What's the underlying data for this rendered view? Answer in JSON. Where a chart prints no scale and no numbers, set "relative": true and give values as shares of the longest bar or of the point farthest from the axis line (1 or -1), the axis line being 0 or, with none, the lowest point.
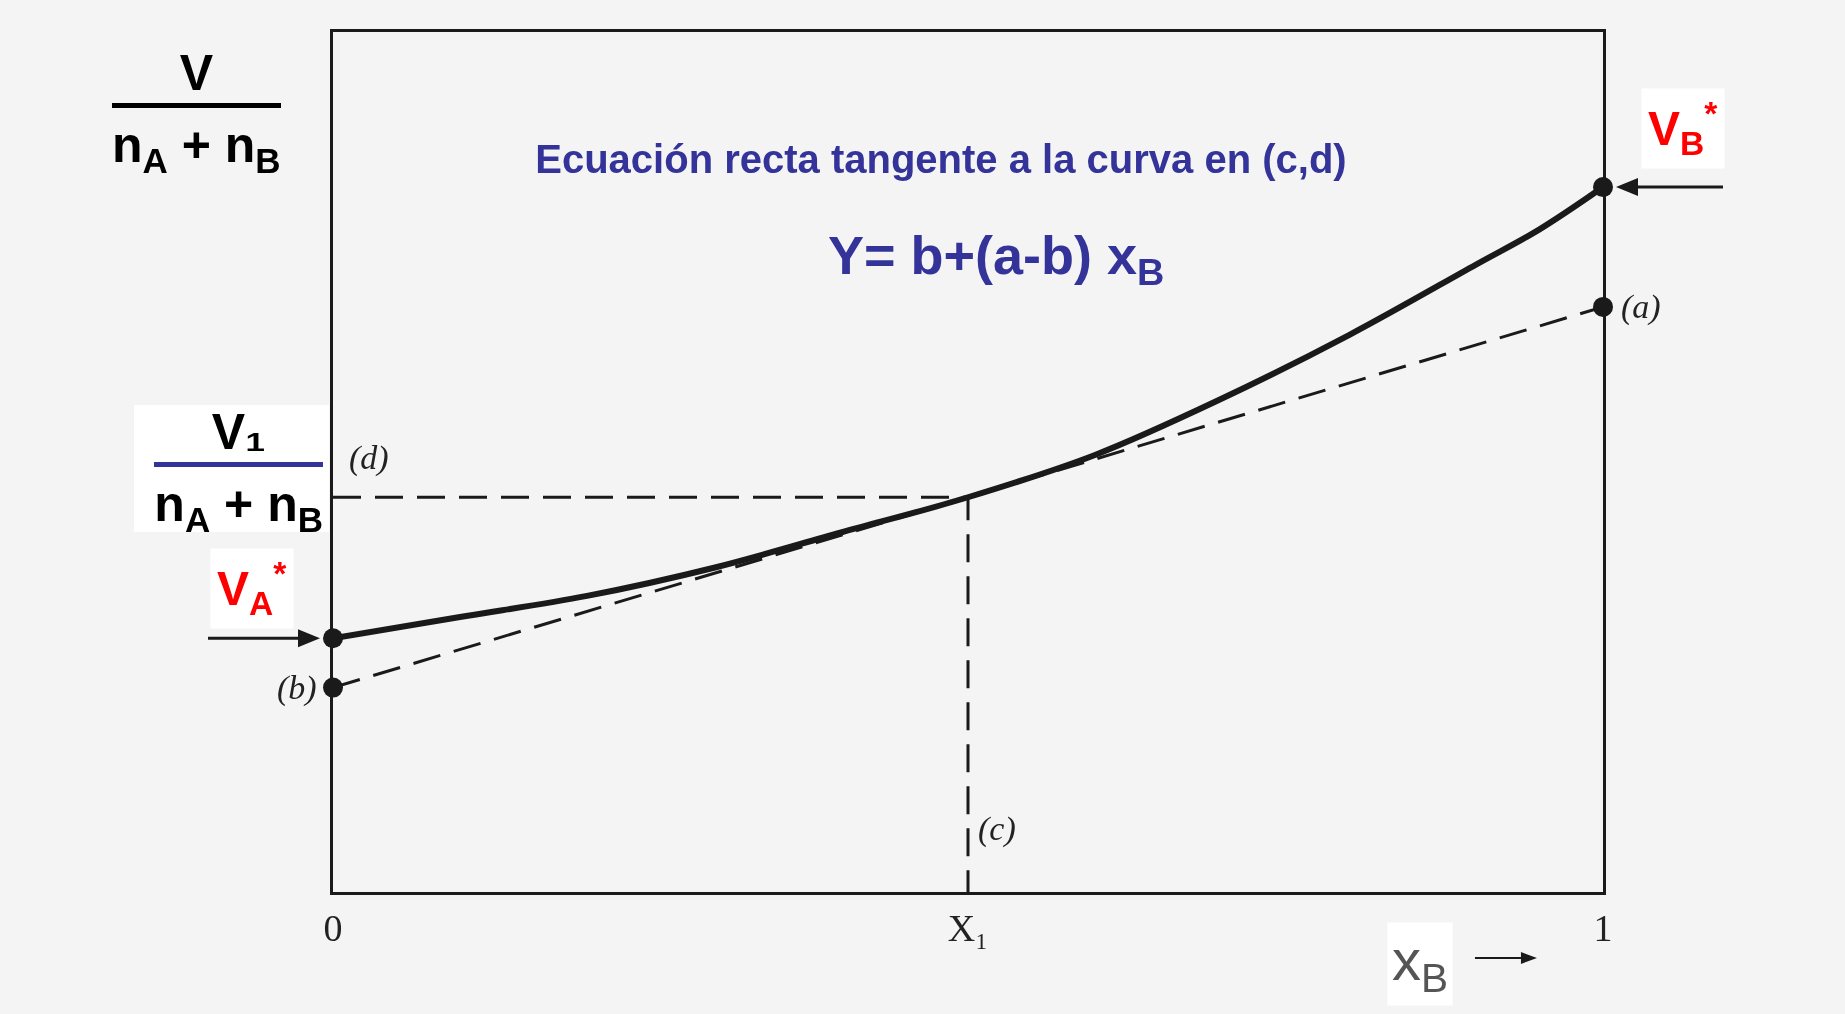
{
  "chart_data": {
    "type": "line",
    "title": "Ecuación recta tangente a la curva en (c,d)",
    "subtitle": "Y= b+(a-b) x$_{B}$",
    "xlabel": "x$_{B}$",
    "ylabel": "V\nn$_{A}$ + n$_{B}$",
    "relative": true,
    "xlim": [
      0,
      1
    ],
    "xticks": [
      0,
      {
        "value": 0.5,
        "label": "X₁"
      },
      1
    ],
    "series": [
      {
        "x": [
          0,
          0.1,
          0.2,
          0.3,
          0.4,
          0.5,
          0.6,
          0.7,
          0.8,
          0.9,
          0.95,
          1
        ],
        "values": [
          0.36,
          0.39,
          0.42,
          0.46,
          0.51,
          0.56,
          0.62,
          0.7,
          0.79,
          0.89,
          0.94,
          1
        ],
        "color": "#1a1a1a",
        "line_style": "solid"
      },
      {
        "x": [
          0,
          1
        ],
        "values": [
          0.29,
          0.83
        ],
        "color": "#1a1a1a",
        "line_style": "dashed"
      },
      {
        "x": [
          0,
          0.5,
          0.5
        ],
        "values": [
          0.56,
          0.56,
          0
        ],
        "color": "#1a1a1a",
        "line_style": "dashed"
      },
      {
        "type": "scatter",
        "x": [
          0,
          0,
          1,
          1
        ],
        "values": [
          0.36,
          0.29,
          0.83,
          1
        ],
        "color": "#1a1a1a",
        "marker": "circle"
      }
    ],
    "annotations": [
      {
        "text": "V$_{A}$$^{*}$",
        "x": 0,
        "y": 0.36
      },
      {
        "text": "V$_{B}$$^{*}$",
        "x": 1,
        "y": 1
      },
      {
        "text": "(a)",
        "x": 1,
        "y": 0.83
      },
      {
        "text": "(b)",
        "x": 0,
        "y": 0.29
      },
      {
        "text": "(c)",
        "x": 0.5,
        "y": 0.09
      },
      {
        "text": "(d)",
        "x": 0,
        "y": 0.56
      },
      {
        "text": "V₁\nn$_{A}$ + n$_{B}$",
        "x": 0,
        "y": 0.56
      }
    ]
  }
}
